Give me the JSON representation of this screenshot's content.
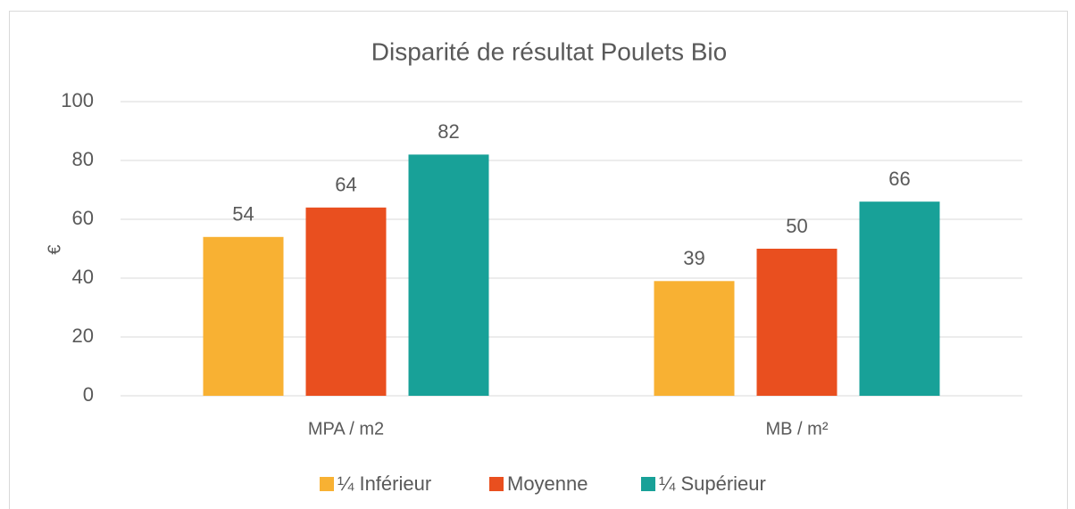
{
  "chart_data": {
    "type": "bar",
    "title": "Disparité de résultat Poulets Bio",
    "y_label": "€",
    "categories": [
      "MPA / m2",
      "MB / m²"
    ],
    "series": [
      {
        "name": "¼ Inférieur",
        "color": "#f8b133",
        "values": [
          54,
          39
        ]
      },
      {
        "name": "Moyenne",
        "color": "#e94f1f",
        "values": [
          64,
          50
        ]
      },
      {
        "name": "¼ Supérieur",
        "color": "#18a198",
        "values": [
          82,
          66
        ]
      }
    ],
    "ylim": [
      0,
      100
    ],
    "yticks": [
      0,
      20,
      40,
      60,
      80,
      100
    ],
    "grid": true,
    "legend": "bottom"
  }
}
